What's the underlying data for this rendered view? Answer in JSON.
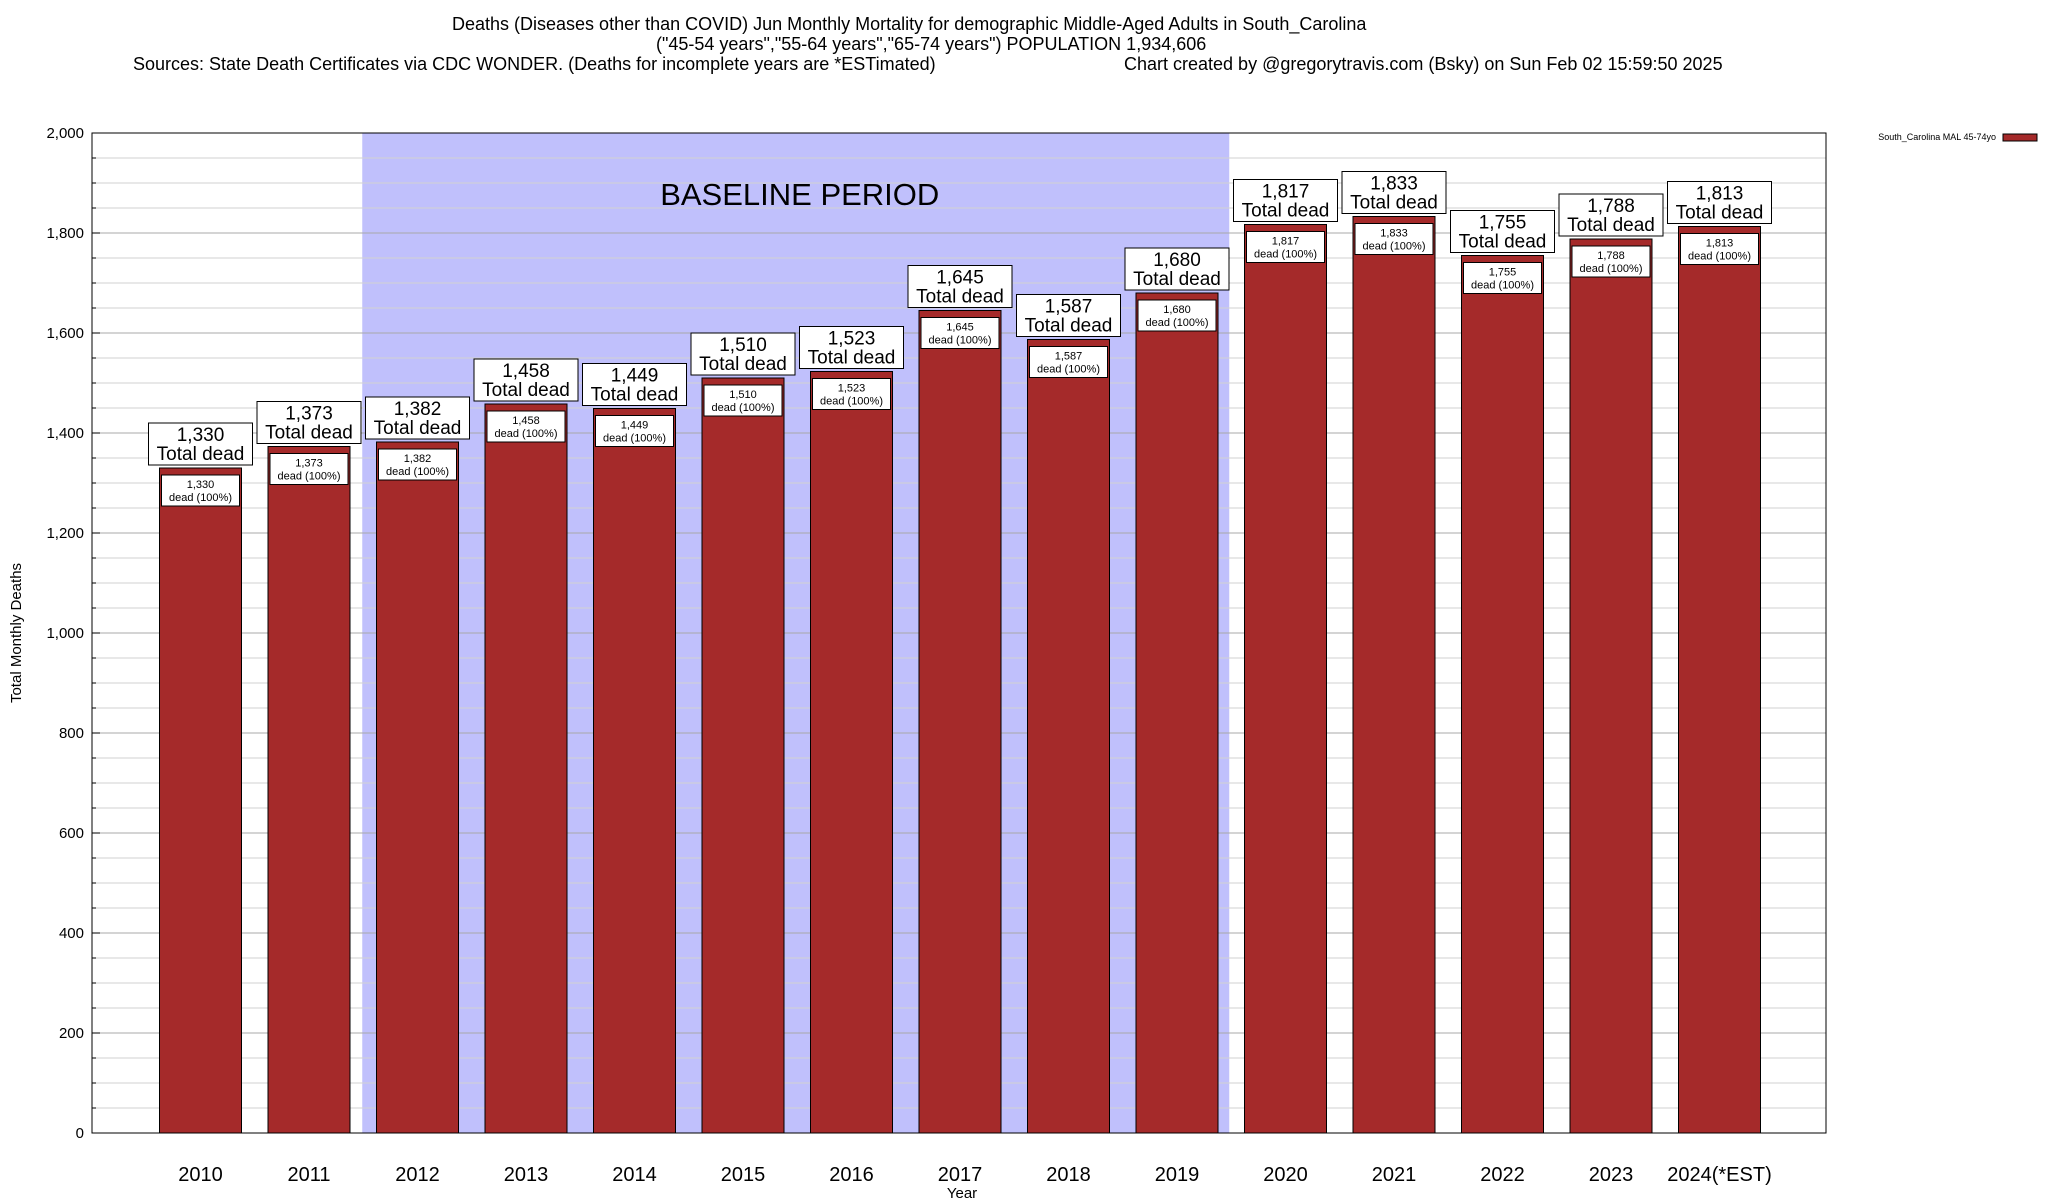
{
  "title": {
    "line1": "Deaths (Diseases other than COVID) Jun Monthly Mortality for demographic Middle-Aged Adults in South_Carolina",
    "line2": "(\"45-54 years\",\"55-64 years\",\"65-74 years\") POPULATION 1,934,606",
    "line3_left": "Sources: State Death Certificates via CDC WONDER. (Deaths for incomplete years are *ESTimated)",
    "line3_right": "Chart created by @gregorytravis.com (Bsky) on Sun Feb 02 15:59:50 2025"
  },
  "chart_data": {
    "type": "bar",
    "xlabel": "Year",
    "ylabel": "Total Monthly Deaths",
    "ylim": [
      0,
      2000
    ],
    "ytick_step": 200,
    "ytick_labels": [
      "0",
      "200",
      "400",
      "600",
      "800",
      "1,000",
      "1,200",
      "1,400",
      "1,600",
      "1,800",
      "2,000"
    ],
    "grid": true,
    "legend_position": "top-right",
    "categories": [
      "2010",
      "2011",
      "2012",
      "2013",
      "2014",
      "2015",
      "2016",
      "2017",
      "2018",
      "2019",
      "2020",
      "2021",
      "2022",
      "2023",
      "2024(*EST)"
    ],
    "series": [
      {
        "name": "South_Carolina MAL 45-74yo",
        "color": "#a52a2a",
        "values": [
          1330,
          1373,
          1382,
          1458,
          1449,
          1510,
          1523,
          1645,
          1587,
          1680,
          1817,
          1833,
          1755,
          1788,
          1813
        ]
      }
    ],
    "total_labels": [
      "1,330",
      "1,373",
      "1,382",
      "1,458",
      "1,449",
      "1,510",
      "1,523",
      "1,645",
      "1,587",
      "1,680",
      "1,817",
      "1,833",
      "1,755",
      "1,788",
      "1,813"
    ],
    "total_caption": "Total dead",
    "inner_caption": "dead (100%)",
    "baseline": {
      "label": "BASELINE PERIOD",
      "start": "2012",
      "end": "2019",
      "color": "#c0c0fc"
    }
  }
}
